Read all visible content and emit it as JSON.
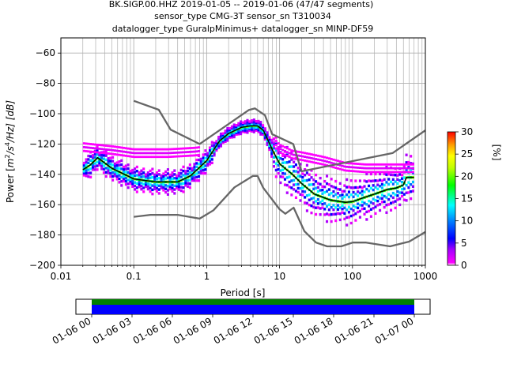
{
  "chart_data": {
    "type": "heatmap",
    "title_lines": [
      "BK.SIGP.00.HHZ   2019-01-05 -- 2019-01-06  (47/47 segments)",
      "sensor_type CMG-3T sensor_sn T310034",
      "datalogger_type GuralpMinimus+ datalogger_sn MINP-DF59"
    ],
    "xlabel": "Period [s]",
    "ylabel": "Power [m²/s⁴/Hz] [dB]",
    "ylabel_parts": {
      "prefix": "Power [",
      "m": "m",
      "sq": "2",
      "s": "/s",
      "four": "4",
      "hz": "/Hz] [dB]"
    },
    "xscale": "log",
    "xlim": [
      0.01,
      1000
    ],
    "ylim": [
      -200,
      -50
    ],
    "xticks": [
      {
        "v": 0.01,
        "label": "0.01"
      },
      {
        "v": 0.1,
        "label": "0.1"
      },
      {
        "v": 1,
        "label": "1"
      },
      {
        "v": 10,
        "label": "10"
      },
      {
        "v": 100,
        "label": "100"
      },
      {
        "v": 1000,
        "label": "1000"
      }
    ],
    "yticks": [
      {
        "v": -60,
        "label": "−60"
      },
      {
        "v": -80,
        "label": "−80"
      },
      {
        "v": -100,
        "label": "−100"
      },
      {
        "v": -120,
        "label": "−120"
      },
      {
        "v": -140,
        "label": "−140"
      },
      {
        "v": -160,
        "label": "−160"
      },
      {
        "v": -180,
        "label": "−180"
      },
      {
        "v": -200,
        "label": "−200"
      }
    ],
    "grid": true,
    "colorbar": {
      "label": "[%]",
      "range": [
        0,
        30
      ],
      "ticks": [
        {
          "v": 0,
          "label": "0"
        },
        {
          "v": 5,
          "label": "5"
        },
        {
          "v": 10,
          "label": "10"
        },
        {
          "v": 15,
          "label": "15"
        },
        {
          "v": 20,
          "label": "20"
        },
        {
          "v": 25,
          "label": "25"
        },
        {
          "v": 30,
          "label": "30"
        }
      ]
    },
    "series": [
      {
        "role": "new-high-noise-model",
        "color": "#666666",
        "points": [
          [
            0.1,
            -91.5
          ],
          [
            0.22,
            -97.4
          ],
          [
            0.32,
            -110.5
          ],
          [
            0.8,
            -120
          ],
          [
            3.8,
            -97.5
          ],
          [
            4.6,
            -96.5
          ],
          [
            6.3,
            -101
          ],
          [
            7.9,
            -113.5
          ],
          [
            15.4,
            -120
          ],
          [
            20,
            -138
          ],
          [
            354.8,
            -126
          ],
          [
            1000,
            -111
          ]
        ]
      },
      {
        "role": "new-low-noise-model",
        "color": "#666666",
        "points": [
          [
            0.1,
            -168
          ],
          [
            0.17,
            -166.7
          ],
          [
            0.4,
            -166.7
          ],
          [
            0.8,
            -169.2
          ],
          [
            1.24,
            -163.7
          ],
          [
            2.4,
            -148.6
          ],
          [
            4.3,
            -141.1
          ],
          [
            5,
            -141.1
          ],
          [
            6,
            -149
          ],
          [
            10,
            -163
          ],
          [
            12,
            -166
          ],
          [
            15.6,
            -162
          ],
          [
            21.9,
            -177.5
          ],
          [
            31.6,
            -185
          ],
          [
            45,
            -187.5
          ],
          [
            70,
            -187.5
          ],
          [
            101,
            -185
          ],
          [
            154,
            -185
          ],
          [
            328,
            -187.5
          ],
          [
            600,
            -184.4
          ],
          [
            1000,
            -178
          ]
        ]
      },
      {
        "role": "mean-psd",
        "color": "#000000",
        "points": [
          [
            0.02,
            -137
          ],
          [
            0.025,
            -134
          ],
          [
            0.032,
            -129
          ],
          [
            0.05,
            -136
          ],
          [
            0.1,
            -143
          ],
          [
            0.2,
            -145
          ],
          [
            0.4,
            -145
          ],
          [
            0.6,
            -141
          ],
          [
            1,
            -131
          ],
          [
            1.5,
            -118
          ],
          [
            2,
            -113
          ],
          [
            3,
            -109
          ],
          [
            4,
            -108
          ],
          [
            5,
            -108
          ],
          [
            6,
            -111
          ],
          [
            8,
            -124
          ],
          [
            10,
            -133
          ],
          [
            15,
            -140
          ],
          [
            20,
            -146
          ],
          [
            30,
            -153
          ],
          [
            50,
            -157
          ],
          [
            80,
            -158.5
          ],
          [
            100,
            -158
          ],
          [
            150,
            -155
          ],
          [
            200,
            -153
          ],
          [
            300,
            -150
          ],
          [
            400,
            -149
          ],
          [
            500,
            -147
          ],
          [
            550,
            -142
          ],
          [
            700,
            -142
          ]
        ]
      }
    ],
    "density": {
      "description": "probability density of PSD values (percent)",
      "centers": [
        [
          0.02,
          -137
        ],
        [
          0.025,
          -134
        ],
        [
          0.032,
          -129
        ],
        [
          0.05,
          -136
        ],
        [
          0.1,
          -143
        ],
        [
          0.2,
          -145
        ],
        [
          0.4,
          -145
        ],
        [
          0.6,
          -141
        ],
        [
          1,
          -131
        ],
        [
          1.5,
          -118
        ],
        [
          2,
          -113
        ],
        [
          3,
          -109
        ],
        [
          4,
          -108
        ],
        [
          5,
          -108
        ],
        [
          6,
          -111
        ],
        [
          8,
          -124
        ],
        [
          10,
          -133
        ],
        [
          15,
          -140
        ],
        [
          20,
          -146
        ],
        [
          30,
          -153
        ],
        [
          50,
          -157
        ],
        [
          80,
          -158.5
        ],
        [
          100,
          -158
        ],
        [
          150,
          -155
        ],
        [
          200,
          -153
        ],
        [
          300,
          -150
        ],
        [
          400,
          -149
        ],
        [
          500,
          -147
        ],
        [
          550,
          -142
        ],
        [
          700,
          -142
        ]
      ],
      "upper_branch": [
        [
          0.02,
          -122
        ],
        [
          0.05,
          -124
        ],
        [
          0.1,
          -126
        ],
        [
          0.3,
          -126
        ],
        [
          0.7,
          -125
        ],
        [
          1,
          -124
        ],
        [
          2,
          -115
        ],
        [
          4,
          -109
        ],
        [
          7,
          -115
        ],
        [
          10,
          -123
        ],
        [
          15,
          -127
        ],
        [
          20,
          -128
        ],
        [
          40,
          -131
        ],
        [
          80,
          -135
        ],
        [
          150,
          -136
        ],
        [
          300,
          -136
        ],
        [
          700,
          -136
        ]
      ]
    }
  },
  "timeline": {
    "ticks": [
      "01-06 00",
      "01-06 03",
      "01-06 06",
      "01-06 09",
      "01-06 12",
      "01-06 15",
      "01-06 18",
      "01-06 21",
      "01-07 00"
    ],
    "bar_colors": {
      "top": "#008000",
      "bottom": "#0000ff"
    }
  }
}
